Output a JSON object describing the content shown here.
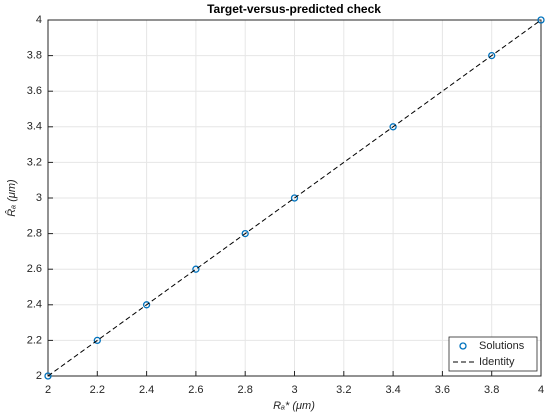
{
  "chart_data": {
    "type": "scatter",
    "title": "Target-versus-predicted check",
    "xlabel": "Rₐ* (μm)",
    "ylabel": "R̂ₐ (μm)",
    "xlim": [
      2,
      4
    ],
    "xticks": [
      2,
      2.2,
      2.4,
      2.6,
      2.8,
      3,
      3.2,
      3.4,
      3.6,
      3.8,
      4
    ],
    "ylim": [
      2,
      4
    ],
    "yticks": [
      2,
      2.2,
      2.4,
      2.6,
      2.8,
      3,
      3.2,
      3.4,
      3.6,
      3.8,
      4
    ],
    "grid": true,
    "legend": "southeast",
    "series": [
      {
        "name": "Solutions",
        "color": "#0072bd",
        "marker": "o",
        "x": [
          2,
          2.2,
          2.4,
          2.6,
          2.8,
          3,
          3.4,
          3.8,
          4
        ],
        "values": [
          2,
          2.2,
          2.4,
          2.6,
          2.8,
          3,
          3.4,
          3.8,
          4
        ]
      },
      {
        "name": "Identity",
        "color": "#000000",
        "line": "--",
        "x": [
          2,
          4
        ],
        "values": [
          2,
          4
        ]
      }
    ]
  }
}
